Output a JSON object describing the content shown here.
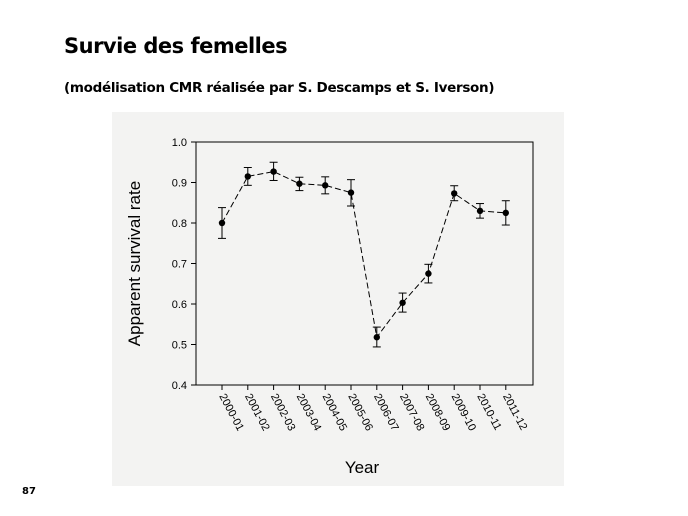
{
  "slide": {
    "title": "Survie des femelles",
    "subtitle": "(modélisation CMR réalisée par S. Descamps et S. Iverson)",
    "page_number": "87"
  },
  "chart_data": {
    "type": "line",
    "title": "",
    "xlabel": "Year",
    "ylabel": "Apparent survival rate",
    "categories": [
      "2000-01",
      "2001-02",
      "2002-03",
      "2003-04",
      "2004-05",
      "2005-06",
      "2006-07",
      "2007-08",
      "2008-09",
      "2009-10",
      "2010-11",
      "2011-12"
    ],
    "series": [
      {
        "values": [
          0.8,
          0.915,
          0.927,
          0.897,
          0.893,
          0.875,
          0.518,
          0.603,
          0.675,
          0.873,
          0.83,
          0.825
        ],
        "err_low": [
          0.762,
          0.893,
          0.905,
          0.88,
          0.872,
          0.842,
          0.494,
          0.58,
          0.652,
          0.855,
          0.812,
          0.795
        ],
        "err_high": [
          0.838,
          0.937,
          0.95,
          0.913,
          0.914,
          0.907,
          0.543,
          0.627,
          0.698,
          0.892,
          0.848,
          0.855
        ]
      }
    ],
    "yticks": [
      "0.4",
      "0.5",
      "0.6",
      "0.7",
      "0.8",
      "0.9",
      "1.0"
    ],
    "ylim": [
      0.4,
      1.0
    ],
    "grid": false,
    "line_style": "dashed",
    "marker": "filled-circle",
    "colors": {
      "line": "#000000",
      "marker": "#000000",
      "panel": "#f3f3f2"
    }
  }
}
